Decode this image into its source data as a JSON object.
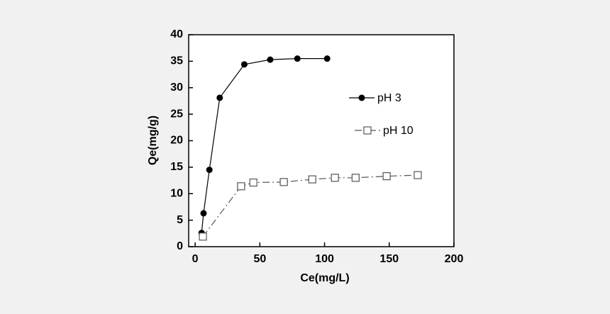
{
  "chart_data": {
    "type": "scatter",
    "x_label": "Ce(mg/L)",
    "y_label": "Qe(mg/g)",
    "xlim": [
      -5,
      200
    ],
    "ylim": [
      0,
      40
    ],
    "xticks": [
      0,
      50,
      100,
      150,
      200
    ],
    "yticks": [
      0,
      5,
      10,
      15,
      20,
      25,
      30,
      35,
      40
    ],
    "series": [
      {
        "name": "pH 3",
        "color": "#000000",
        "marker": "filled-circle",
        "line": "solid",
        "x": [
          5,
          6.5,
          11,
          19,
          38,
          58,
          79,
          102
        ],
        "values": [
          2.6,
          6.3,
          14.5,
          28.1,
          34.4,
          35.3,
          35.5,
          35.5
        ]
      },
      {
        "name": "pH 10",
        "color": "#555555",
        "marker": "open-square",
        "line": "dashdot",
        "x": [
          6,
          35.5,
          45,
          68.5,
          90.5,
          108,
          124,
          148,
          172
        ],
        "values": [
          1.9,
          11.4,
          12.1,
          12.2,
          12.7,
          13.0,
          13.0,
          13.3,
          13.5
        ]
      }
    ]
  }
}
